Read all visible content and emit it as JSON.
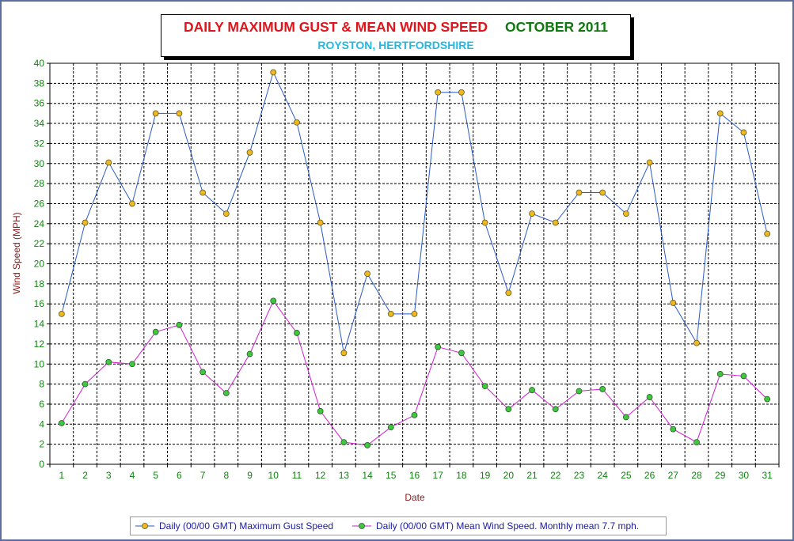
{
  "title": "DAILY MAXIMUM GUST & MEAN WIND SPEED",
  "title_date": "OCTOBER 2011",
  "subtitle": "ROYSTON, HERTFORDSHIRE",
  "colors": {
    "title": "#e0141a",
    "title_date": "#0e7a0e",
    "subtitle": "#21b9e3",
    "gust_line": "#2a5ac8",
    "gust_marker": "#f0b81e",
    "mean_line": "#d21ed2",
    "mean_marker": "#3ec83e",
    "tick_labels": "#128212",
    "axis_titles": "#8b1a1a",
    "legend_text": "#1a1aa6"
  },
  "chart_data": {
    "type": "line",
    "title": "DAILY MAXIMUM GUST & MEAN WIND SPEED    OCTOBER 2011",
    "subtitle": "ROYSTON, HERTFORDSHIRE",
    "xlabel": "Date",
    "ylabel": "Wind Speed (MPH)",
    "x": [
      1,
      2,
      3,
      4,
      5,
      6,
      7,
      8,
      9,
      10,
      11,
      12,
      13,
      14,
      15,
      16,
      17,
      18,
      19,
      20,
      21,
      22,
      23,
      24,
      25,
      26,
      27,
      28,
      29,
      30,
      31
    ],
    "ylim": [
      0,
      40
    ],
    "ytick_step": 2,
    "grid": true,
    "legend_position": "bottom",
    "series": [
      {
        "name": "Daily (00/00 GMT) Maximum Gust Speed",
        "values": [
          15,
          24.1,
          30.1,
          26,
          35,
          35,
          27.1,
          25,
          31.1,
          39.1,
          34.1,
          24.1,
          11.1,
          19,
          15,
          15,
          37.1,
          37.1,
          24.1,
          17.1,
          25,
          24.1,
          27.1,
          27.1,
          25,
          30.1,
          16.1,
          12.1,
          35,
          33.1,
          23
        ]
      },
      {
        "name": "Daily (00/00 GMT) Mean Wind Speed. Monthly mean 7.7 mph.",
        "values": [
          4.1,
          8,
          10.2,
          10,
          13.2,
          13.9,
          9.2,
          7.1,
          11,
          16.3,
          13.1,
          5.3,
          2.2,
          1.9,
          3.7,
          4.9,
          11.7,
          11.1,
          7.8,
          5.5,
          7.4,
          5.5,
          7.3,
          7.5,
          4.7,
          6.7,
          3.5,
          2.2,
          9,
          8.8,
          6.5
        ]
      }
    ]
  }
}
